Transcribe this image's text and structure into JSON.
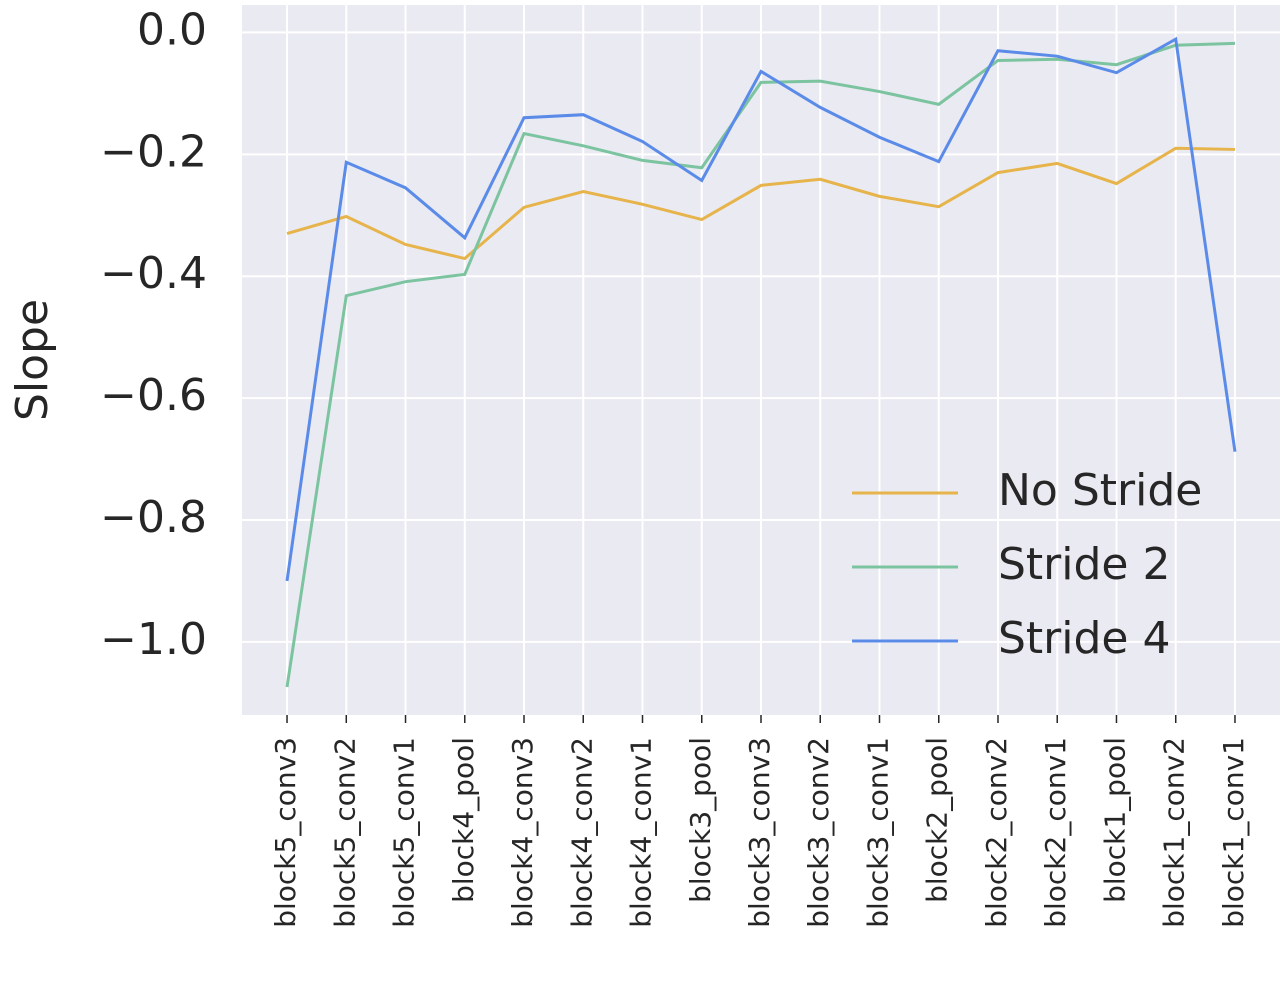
{
  "chart_data": {
    "type": "line",
    "ylabel": "Slope",
    "categories": [
      "block5_conv3",
      "block5_conv2",
      "block5_conv1",
      "block4_pool",
      "block4_conv3",
      "block4_conv2",
      "block4_conv1",
      "block3_pool",
      "block3_conv3",
      "block3_conv2",
      "block3_conv1",
      "block2_pool",
      "block2_conv2",
      "block2_conv1",
      "block1_pool",
      "block1_conv2",
      "block1_conv1"
    ],
    "series": [
      {
        "name": "No Stride",
        "color": "#e6b44a",
        "values": [
          -0.33,
          -0.302,
          -0.348,
          -0.371,
          -0.287,
          -0.261,
          -0.282,
          -0.307,
          -0.251,
          -0.241,
          -0.269,
          -0.286,
          -0.23,
          -0.215,
          -0.248,
          -0.19,
          -0.192
        ]
      },
      {
        "name": "Stride 2",
        "color": "#7cc4a0",
        "values": [
          -1.074,
          -0.432,
          -0.409,
          -0.397,
          -0.166,
          -0.186,
          -0.21,
          -0.222,
          -0.082,
          -0.08,
          -0.097,
          -0.118,
          -0.046,
          -0.044,
          -0.053,
          -0.021,
          -0.018
        ]
      },
      {
        "name": "Stride 4",
        "color": "#5b8be8",
        "values": [
          -0.9,
          -0.213,
          -0.255,
          -0.337,
          -0.14,
          -0.135,
          -0.179,
          -0.243,
          -0.064,
          -0.123,
          -0.172,
          -0.212,
          -0.03,
          -0.039,
          -0.066,
          -0.011,
          -0.688
        ]
      }
    ],
    "ylim": [
      -1.12,
      0.045
    ],
    "yticks": [
      {
        "value": 0,
        "label": "0.0"
      },
      {
        "value": -0.2,
        "label": "−0.2"
      },
      {
        "value": -0.4,
        "label": "−0.4"
      },
      {
        "value": -0.6,
        "label": "−0.6"
      },
      {
        "value": -0.8,
        "label": "−0.8"
      },
      {
        "value": -1.0,
        "label": "−1.0"
      }
    ],
    "grid": true,
    "legend": "lower right"
  }
}
